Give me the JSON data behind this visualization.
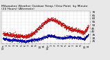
{
  "title": "Milwaukee Weather Outdoor Temp / Dew Point  by Minute\n(24 Hours) (Alternate)",
  "bg_color": "#e8e8e8",
  "plot_bg": "#ffffff",
  "grid_color": "#aaaaaa",
  "temp_color": "#dd0000",
  "dew_color": "#0000cc",
  "ylim": [
    22,
    72
  ],
  "ytick_vals": [
    25,
    30,
    35,
    40,
    45,
    50,
    55,
    60,
    65,
    70
  ],
  "hours": [
    0,
    1,
    2,
    3,
    4,
    5,
    6,
    7,
    8,
    9,
    10,
    11,
    12,
    13,
    14,
    15,
    16,
    17,
    18,
    19,
    20,
    21,
    22,
    23
  ],
  "temp": [
    37,
    36,
    35,
    34,
    33,
    33,
    32,
    34,
    37,
    42,
    47,
    53,
    57,
    59,
    57,
    54,
    51,
    47,
    44,
    43,
    42,
    40,
    39,
    48
  ],
  "dew": [
    29,
    28,
    27,
    27,
    26,
    26,
    25,
    26,
    27,
    28,
    29,
    31,
    33,
    34,
    32,
    31,
    30,
    31,
    32,
    31,
    31,
    30,
    29,
    36
  ],
  "title_fontsize": 3.2,
  "tick_fontsize": 3.0,
  "marker_size": 0.4,
  "xtick_labels": [
    "12a",
    "1",
    "2",
    "3",
    "4",
    "5",
    "6",
    "7",
    "8",
    "9",
    "10",
    "11",
    "12p",
    "1",
    "2",
    "3",
    "4",
    "5",
    "6",
    "7",
    "8",
    "9",
    "10",
    "11"
  ]
}
